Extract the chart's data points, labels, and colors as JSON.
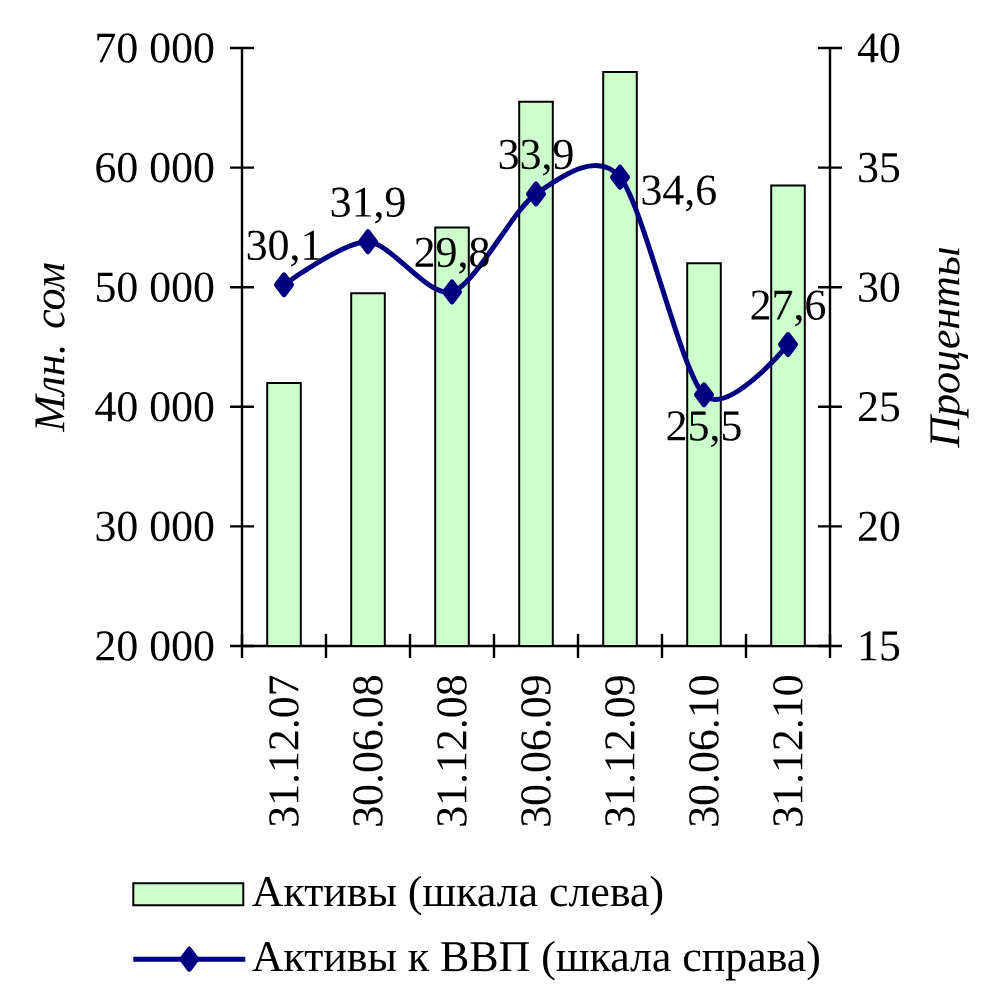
{
  "chart_data": {
    "type": "bar",
    "categories": [
      "31.12.07",
      "30.06.08",
      "31.12.08",
      "30.06.09",
      "31.12.09",
      "30.06.10",
      "31.12.10"
    ],
    "ylabel": "Млн. сом",
    "y2label": "Проценты",
    "ylim": [
      20000,
      70000
    ],
    "yticks": [
      {
        "value": 20000,
        "label": "20 000"
      },
      {
        "value": 30000,
        "label": "30 000"
      },
      {
        "value": 40000,
        "label": "40 000"
      },
      {
        "value": 50000,
        "label": "50 000"
      },
      {
        "value": 60000,
        "label": "60 000"
      },
      {
        "value": 70000,
        "label": "70 000"
      }
    ],
    "y2lim": [
      15,
      40
    ],
    "y2ticks": [
      15,
      20,
      25,
      30,
      35,
      40
    ],
    "legend": "bottom",
    "series": [
      {
        "name": "Активы (шкала слева)",
        "color": "#ccffcc",
        "values": [
          42000,
          49500,
          55000,
          65500,
          68000,
          52000,
          58500
        ]
      },
      {
        "name": "Активы к ВВП (шкала справа)",
        "type": "line",
        "axis": "y2",
        "color": "#000080",
        "marker": "diamond",
        "values": [
          30.1,
          31.9,
          29.8,
          33.9,
          34.6,
          25.5,
          27.6
        ],
        "value_labels": [
          "30,1",
          "31,9",
          "29,8",
          "33,9",
          "34,6",
          "25,5",
          "27,6"
        ]
      }
    ]
  }
}
